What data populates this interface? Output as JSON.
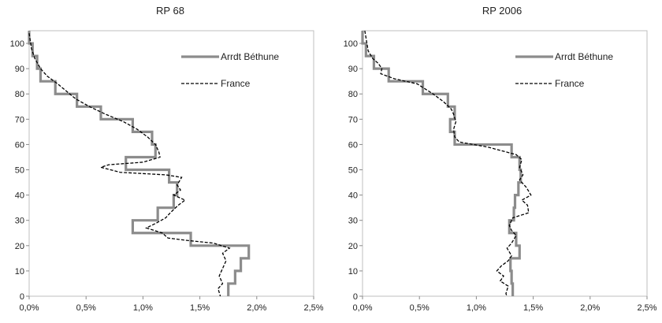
{
  "chart_data": [
    {
      "type": "line",
      "title": "RP 68",
      "xlim": [
        0,
        0.025
      ],
      "ylim": [
        0,
        105
      ],
      "x_ticks": [
        "0,0%",
        "0,5%",
        "1,0%",
        "1,5%",
        "2,0%",
        "2,5%"
      ],
      "y_ticks": [
        "0",
        "10",
        "20",
        "30",
        "40",
        "50",
        "60",
        "70",
        "80",
        "90",
        "100"
      ],
      "legend_position": "top-right",
      "series": [
        {
          "name": "Arrdt Béthune",
          "style": "step",
          "color": "#8c8c8c",
          "points": [
            [
              0.0,
              105
            ],
            [
              0.0,
              100
            ],
            [
              0.0003,
              100
            ],
            [
              0.0003,
              95
            ],
            [
              0.0007,
              95
            ],
            [
              0.0007,
              90
            ],
            [
              0.001,
              90
            ],
            [
              0.001,
              85
            ],
            [
              0.0023,
              85
            ],
            [
              0.0023,
              80
            ],
            [
              0.0042,
              80
            ],
            [
              0.0042,
              75
            ],
            [
              0.0063,
              75
            ],
            [
              0.0063,
              70
            ],
            [
              0.0091,
              70
            ],
            [
              0.0091,
              65
            ],
            [
              0.0108,
              65
            ],
            [
              0.0108,
              60
            ],
            [
              0.0111,
              60
            ],
            [
              0.0111,
              55
            ],
            [
              0.0085,
              55
            ],
            [
              0.0085,
              50
            ],
            [
              0.0123,
              50
            ],
            [
              0.0123,
              45
            ],
            [
              0.013,
              45
            ],
            [
              0.013,
              40
            ],
            [
              0.0127,
              40
            ],
            [
              0.0127,
              35
            ],
            [
              0.0113,
              35
            ],
            [
              0.0113,
              30
            ],
            [
              0.0091,
              30
            ],
            [
              0.0091,
              25
            ],
            [
              0.0142,
              25
            ],
            [
              0.0142,
              20
            ],
            [
              0.0193,
              20
            ],
            [
              0.0193,
              15
            ],
            [
              0.0186,
              15
            ],
            [
              0.0186,
              10
            ],
            [
              0.0181,
              10
            ],
            [
              0.0181,
              5
            ],
            [
              0.0175,
              5
            ],
            [
              0.0175,
              0
            ]
          ]
        },
        {
          "name": "France",
          "style": "dashed",
          "color": "#000000",
          "points": [
            [
              0.0,
              104
            ],
            [
              0.0002,
              98
            ],
            [
              0.0005,
              94
            ],
            [
              0.001,
              90
            ],
            [
              0.0016,
              87
            ],
            [
              0.0025,
              84
            ],
            [
              0.0033,
              81
            ],
            [
              0.0041,
              78
            ],
            [
              0.0053,
              75
            ],
            [
              0.0067,
              72
            ],
            [
              0.0083,
              69
            ],
            [
              0.0095,
              66
            ],
            [
              0.0104,
              63
            ],
            [
              0.0111,
              60
            ],
            [
              0.0114,
              57
            ],
            [
              0.0115,
              55
            ],
            [
              0.01,
              53
            ],
            [
              0.007,
              52
            ],
            [
              0.0063,
              51
            ],
            [
              0.008,
              49
            ],
            [
              0.012,
              48
            ],
            [
              0.0134,
              47
            ],
            [
              0.013,
              44
            ],
            [
              0.0133,
              42
            ],
            [
              0.0127,
              40
            ],
            [
              0.0137,
              38
            ],
            [
              0.0131,
              36
            ],
            [
              0.0124,
              33
            ],
            [
              0.012,
              31
            ],
            [
              0.0112,
              29
            ],
            [
              0.0103,
              27
            ],
            [
              0.0117,
              25
            ],
            [
              0.0122,
              23
            ],
            [
              0.014,
              22
            ],
            [
              0.0162,
              21
            ],
            [
              0.0176,
              19
            ],
            [
              0.017,
              17
            ],
            [
              0.0173,
              14
            ],
            [
              0.017,
              11
            ],
            [
              0.0167,
              8
            ],
            [
              0.017,
              5
            ],
            [
              0.0166,
              3
            ],
            [
              0.0168,
              0
            ]
          ]
        }
      ]
    },
    {
      "type": "line",
      "title": "RP 2006",
      "xlim": [
        0,
        0.025
      ],
      "ylim": [
        0,
        105
      ],
      "x_ticks": [
        "0,0%",
        "0,5%",
        "1,0%",
        "1,5%",
        "2,0%",
        "2,5%"
      ],
      "y_ticks": [
        "0",
        "10",
        "20",
        "30",
        "40",
        "50",
        "60",
        "70",
        "80",
        "90",
        "100"
      ],
      "legend_position": "top-right",
      "series": [
        {
          "name": "Arrdt Béthune",
          "style": "step",
          "color": "#8c8c8c",
          "points": [
            [
              0.0,
              105
            ],
            [
              0.0,
              100
            ],
            [
              0.0003,
              100
            ],
            [
              0.0003,
              95
            ],
            [
              0.001,
              95
            ],
            [
              0.001,
              90
            ],
            [
              0.0023,
              90
            ],
            [
              0.0023,
              85
            ],
            [
              0.0053,
              85
            ],
            [
              0.0053,
              80
            ],
            [
              0.0075,
              80
            ],
            [
              0.0075,
              75
            ],
            [
              0.0081,
              75
            ],
            [
              0.0081,
              70
            ],
            [
              0.0077,
              70
            ],
            [
              0.0077,
              65
            ],
            [
              0.0081,
              65
            ],
            [
              0.0081,
              60
            ],
            [
              0.0131,
              60
            ],
            [
              0.0131,
              55
            ],
            [
              0.0138,
              55
            ],
            [
              0.0138,
              50
            ],
            [
              0.0139,
              50
            ],
            [
              0.0139,
              45
            ],
            [
              0.0137,
              45
            ],
            [
              0.0137,
              40
            ],
            [
              0.0134,
              40
            ],
            [
              0.0134,
              35
            ],
            [
              0.0133,
              35
            ],
            [
              0.0133,
              30
            ],
            [
              0.0129,
              30
            ],
            [
              0.0129,
              25
            ],
            [
              0.0135,
              25
            ],
            [
              0.0135,
              20
            ],
            [
              0.0138,
              20
            ],
            [
              0.0138,
              15
            ],
            [
              0.013,
              15
            ],
            [
              0.013,
              10
            ],
            [
              0.0131,
              10
            ],
            [
              0.0131,
              5
            ],
            [
              0.0132,
              5
            ],
            [
              0.0132,
              0
            ]
          ]
        },
        {
          "name": "France",
          "style": "dashed",
          "color": "#000000",
          "points": [
            [
              0.0002,
              105
            ],
            [
              0.0005,
              97
            ],
            [
              0.0009,
              94
            ],
            [
              0.0014,
              92
            ],
            [
              0.0017,
              90
            ],
            [
              0.0016,
              88
            ],
            [
              0.0028,
              86
            ],
            [
              0.0048,
              84
            ],
            [
              0.0055,
              82
            ],
            [
              0.0062,
              80
            ],
            [
              0.0071,
              77
            ],
            [
              0.0078,
              74
            ],
            [
              0.008,
              72
            ],
            [
              0.0082,
              69
            ],
            [
              0.008,
              66
            ],
            [
              0.0081,
              63
            ],
            [
              0.0085,
              61
            ],
            [
              0.011,
              59
            ],
            [
              0.0135,
              56
            ],
            [
              0.014,
              54
            ],
            [
              0.0138,
              51
            ],
            [
              0.0141,
              48
            ],
            [
              0.0138,
              46
            ],
            [
              0.0144,
              43
            ],
            [
              0.0148,
              40
            ],
            [
              0.014,
              38
            ],
            [
              0.0145,
              36
            ],
            [
              0.0146,
              33
            ],
            [
              0.0132,
              31
            ],
            [
              0.0129,
              28
            ],
            [
              0.0131,
              26
            ],
            [
              0.0135,
              24
            ],
            [
              0.0131,
              21
            ],
            [
              0.0127,
              19
            ],
            [
              0.0131,
              16
            ],
            [
              0.0128,
              14
            ],
            [
              0.0122,
              12
            ],
            [
              0.0118,
              10
            ],
            [
              0.0124,
              8
            ],
            [
              0.0121,
              6
            ],
            [
              0.0128,
              4
            ],
            [
              0.0126,
              1
            ],
            [
              0.0127,
              0
            ]
          ]
        }
      ]
    }
  ]
}
